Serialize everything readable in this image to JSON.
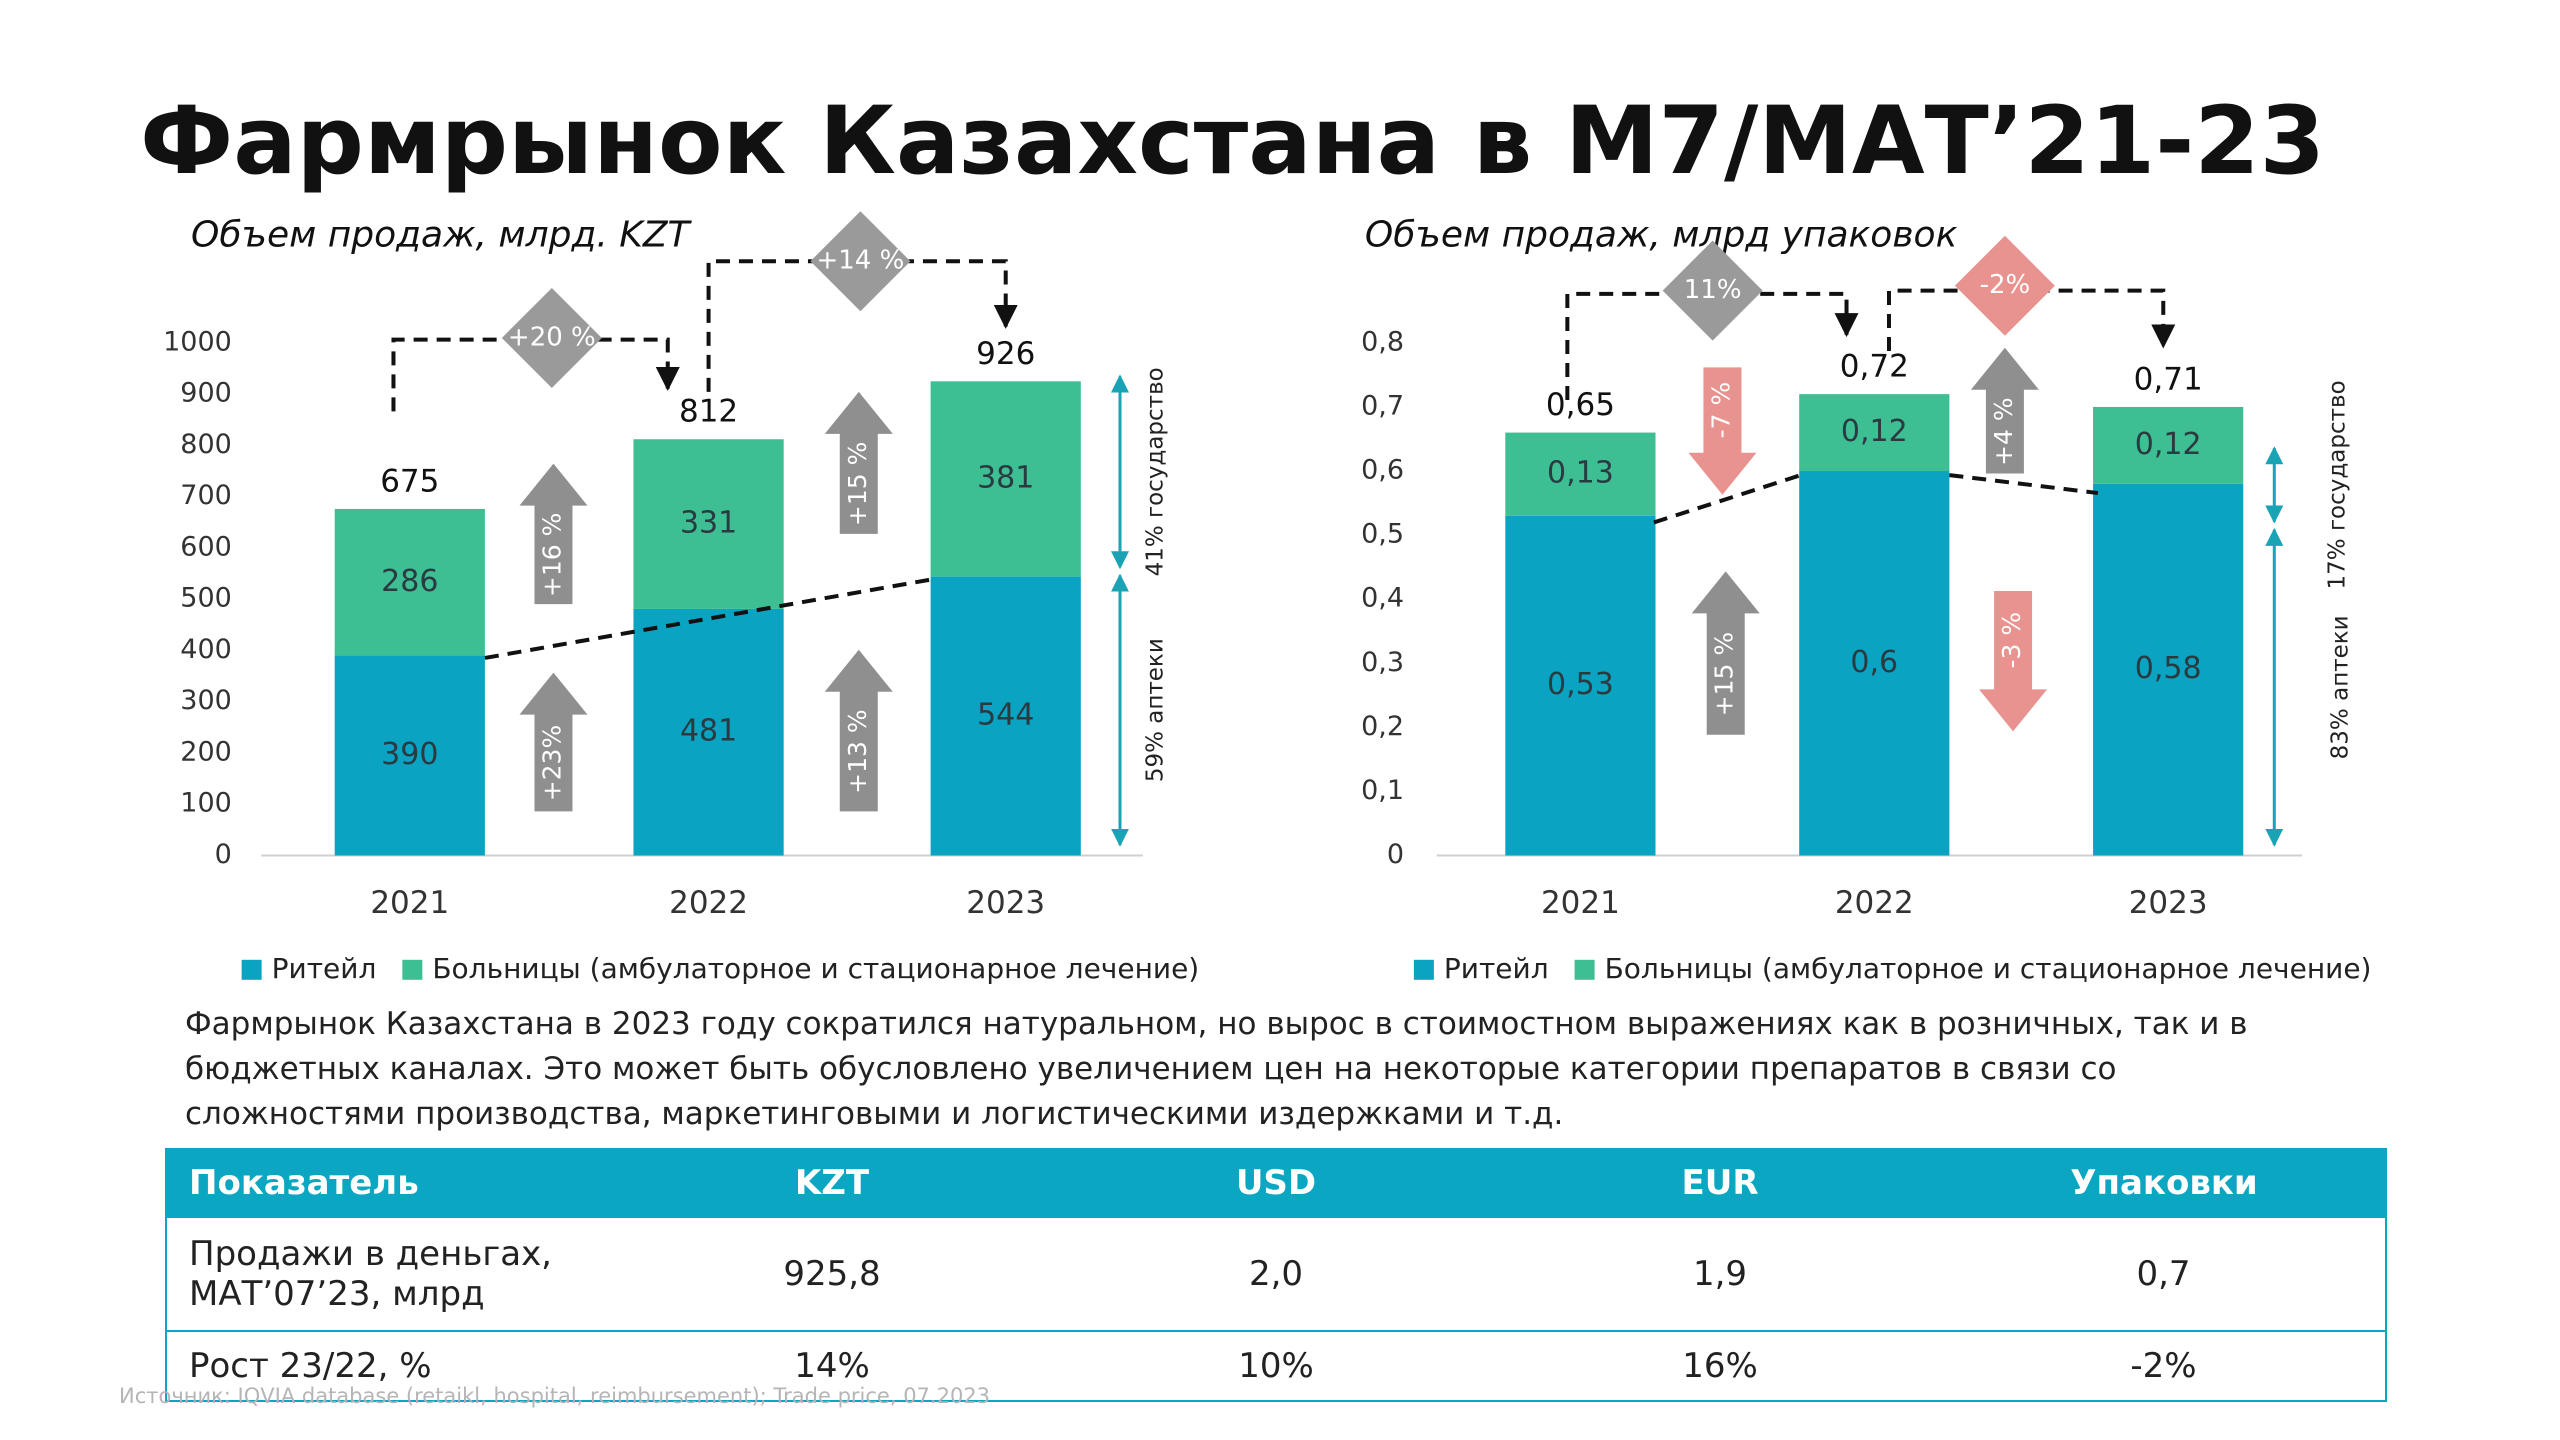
{
  "title": "Фармрынок Казахстана в М7/МАТ’21-23",
  "chart_data": [
    {
      "type": "bar",
      "stacked": true,
      "subtitle": "Объем продаж, млрд. KZT",
      "categories": [
        "2021",
        "2022",
        "2023"
      ],
      "series": [
        {
          "name": "Ритейл",
          "color": "#0aa3c2",
          "values": [
            390,
            481,
            544
          ]
        },
        {
          "name": "Больницы (амбулаторное и стационарное лечение)",
          "color": "#3dbf93",
          "values": [
            286,
            331,
            381
          ]
        }
      ],
      "totals": [
        675,
        812,
        926
      ],
      "ylim": [
        0,
        1000
      ],
      "yticks": [
        0,
        100,
        200,
        300,
        400,
        500,
        600,
        700,
        800,
        900,
        1000
      ],
      "growth": [
        "+20 %",
        "+14 %"
      ],
      "arrows": [
        "+16 %",
        "+23%",
        "+15 %",
        "+13 %"
      ],
      "shares": [
        "41% государство",
        "59% аптеки"
      ]
    },
    {
      "type": "bar",
      "stacked": true,
      "subtitle": "Объем продаж, млрд упаковок",
      "categories": [
        "2021",
        "2022",
        "2023"
      ],
      "series": [
        {
          "name": "Ритейл",
          "color": "#0aa3c2",
          "values": [
            0.53,
            0.6,
            0.58
          ],
          "value_labels": [
            "0,53",
            "0,6",
            "0,58"
          ]
        },
        {
          "name": "Больницы (амбулаторное и стационарное лечение)",
          "color": "#3dbf93",
          "values": [
            0.13,
            0.12,
            0.12
          ],
          "value_labels": [
            "0,13",
            "0,12",
            "0,12"
          ]
        }
      ],
      "totals": [
        0.65,
        0.72,
        0.71
      ],
      "total_labels": [
        "0,65",
        "0,72",
        "0,71"
      ],
      "ylim": [
        0,
        0.8
      ],
      "yticks": [
        0,
        {
          "value": 0.1,
          "label": "0,1"
        },
        {
          "value": 0.2,
          "label": "0,2"
        },
        {
          "value": 0.3,
          "label": "0,3"
        },
        {
          "value": 0.4,
          "label": "0,4"
        },
        {
          "value": 0.5,
          "label": "0,5"
        },
        {
          "value": 0.6,
          "label": "0,6"
        },
        {
          "value": 0.7,
          "label": "0,7"
        },
        {
          "value": 0.8,
          "label": "0,8"
        }
      ],
      "growth": [
        "11%",
        "-2%"
      ],
      "arrows": [
        "-7 %",
        "+15 %",
        "+4 %",
        "-3 %"
      ],
      "shares": [
        "17% государство",
        "83% аптеки"
      ]
    }
  ],
  "paragraph": "Фармрынок Казахстана в 2023 году сократился натуральном, но вырос в стоимостном выражениях как в розничных, так и в бюджетных каналах. Это может быть обусловлено увеличением цен на некоторые категории препаратов в связи со сложностями производства, маркетинговыми и логистическими издержками и т.д.",
  "table": {
    "header": [
      "Показатель",
      "KZT",
      "USD",
      "EUR",
      "Упаковки"
    ],
    "rows": [
      [
        "Продажи в деньгах, МАТ’07’23, млрд",
        "925,8",
        "2,0",
        "1,9",
        "0,7"
      ],
      [
        "Рост 23/22, %",
        "14%",
        "10%",
        "16%",
        "-2%"
      ]
    ]
  },
  "source": "Источник: IQVIA database (retaikl, hospital, reimbursement); Trade price, 07.2023"
}
